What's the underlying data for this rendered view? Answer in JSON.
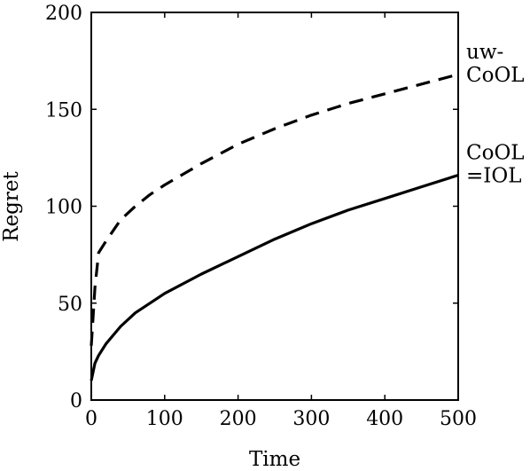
{
  "chart_data": {
    "type": "line",
    "title": "",
    "xlabel": "Time",
    "ylabel": "Regret",
    "xlim": [
      0,
      500
    ],
    "ylim": [
      0,
      200
    ],
    "xticks": [
      0,
      100,
      200,
      300,
      400,
      500
    ],
    "yticks": [
      0,
      50,
      100,
      150,
      200
    ],
    "grid": false,
    "legend": "none",
    "series": [
      {
        "label_lines": [
          "uw-",
          "CoOL"
        ],
        "line_style": "dashed",
        "color": "#000000",
        "x": [
          0,
          5,
          10,
          20,
          40,
          60,
          80,
          100,
          150,
          200,
          250,
          300,
          350,
          400,
          450,
          500
        ],
        "y": [
          28,
          58,
          76,
          82,
          93,
          100,
          106,
          111,
          122,
          132,
          140,
          147,
          153,
          158,
          163,
          168
        ]
      },
      {
        "label_lines": [
          "CoOL",
          "=IOL"
        ],
        "line_style": "solid",
        "color": "#000000",
        "x": [
          0,
          5,
          10,
          20,
          40,
          60,
          80,
          100,
          150,
          200,
          250,
          300,
          350,
          400,
          450,
          500
        ],
        "y": [
          10,
          19,
          23,
          29,
          38,
          45,
          50,
          55,
          65,
          74,
          83,
          91,
          98,
          104,
          110,
          116
        ]
      }
    ]
  }
}
